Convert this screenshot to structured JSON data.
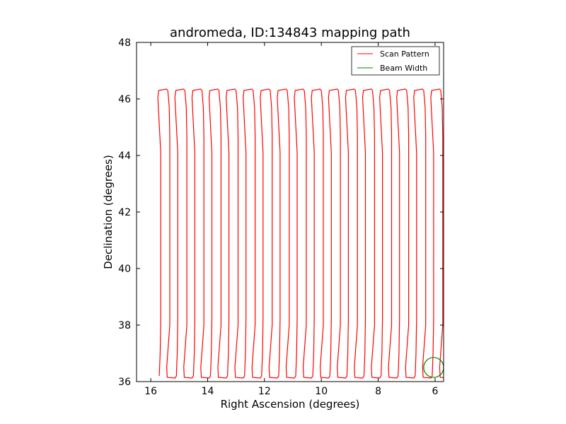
{
  "chart_data": {
    "type": "line",
    "title": "andromeda, ID:134843 mapping path",
    "xlabel": "Right Ascension (degrees)",
    "ylabel": "Declination (degrees)",
    "xlim": [
      16.5,
      5.7
    ],
    "ylim": [
      36,
      48
    ],
    "x_inverted": true,
    "xticks": [
      16,
      14,
      12,
      10,
      8,
      6
    ],
    "yticks": [
      36,
      38,
      40,
      42,
      44,
      46,
      48
    ],
    "grid": false,
    "legend_position": "top-right",
    "scan_pattern": {
      "start_ra": 15.7,
      "ra_step": 0.3,
      "num_legs": 34,
      "dec_low": 36.2,
      "dec_high": 46.3,
      "turn_overshoot": 0.25
    },
    "series": [
      {
        "name": "Scan Pattern",
        "color": "#ff0000"
      },
      {
        "name": "Beam Width",
        "color": "#008000",
        "center": [
          6.05,
          36.5
        ],
        "radius": 0.35
      }
    ]
  }
}
